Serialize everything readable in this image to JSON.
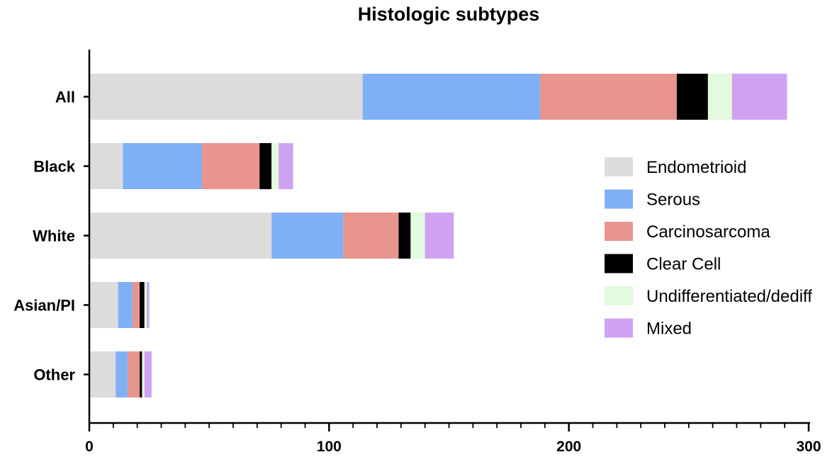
{
  "chart_data": {
    "type": "bar",
    "orientation": "horizontal",
    "stacked": true,
    "title": "Histologic subtypes",
    "xlabel": "",
    "ylabel": "",
    "xlim": [
      0,
      300
    ],
    "x_ticks": [
      0,
      100,
      200,
      300
    ],
    "grid": false,
    "legend_position": "right",
    "categories": [
      "All",
      "Black",
      "White",
      "Asian/PI",
      "Other"
    ],
    "series": [
      {
        "name": "Endometrioid",
        "color": "#dcdcdc",
        "values": [
          114,
          14,
          76,
          12,
          11
        ]
      },
      {
        "name": "Serous",
        "color": "#7fb0f6",
        "values": [
          74,
          33,
          30,
          6,
          5
        ]
      },
      {
        "name": "Carcinosarcoma",
        "color": "#e8958f",
        "values": [
          57,
          24,
          23,
          3,
          5
        ]
      },
      {
        "name": "Clear Cell",
        "color": "#000000",
        "values": [
          13,
          5,
          5,
          2,
          1
        ]
      },
      {
        "name": "Undifferentiated/dediff",
        "color": "#e2fadd",
        "values": [
          10,
          3,
          6,
          1,
          1
        ]
      },
      {
        "name": "Mixed",
        "color": "#d0a2f2",
        "values": [
          23,
          6,
          12,
          1,
          3
        ]
      }
    ]
  }
}
